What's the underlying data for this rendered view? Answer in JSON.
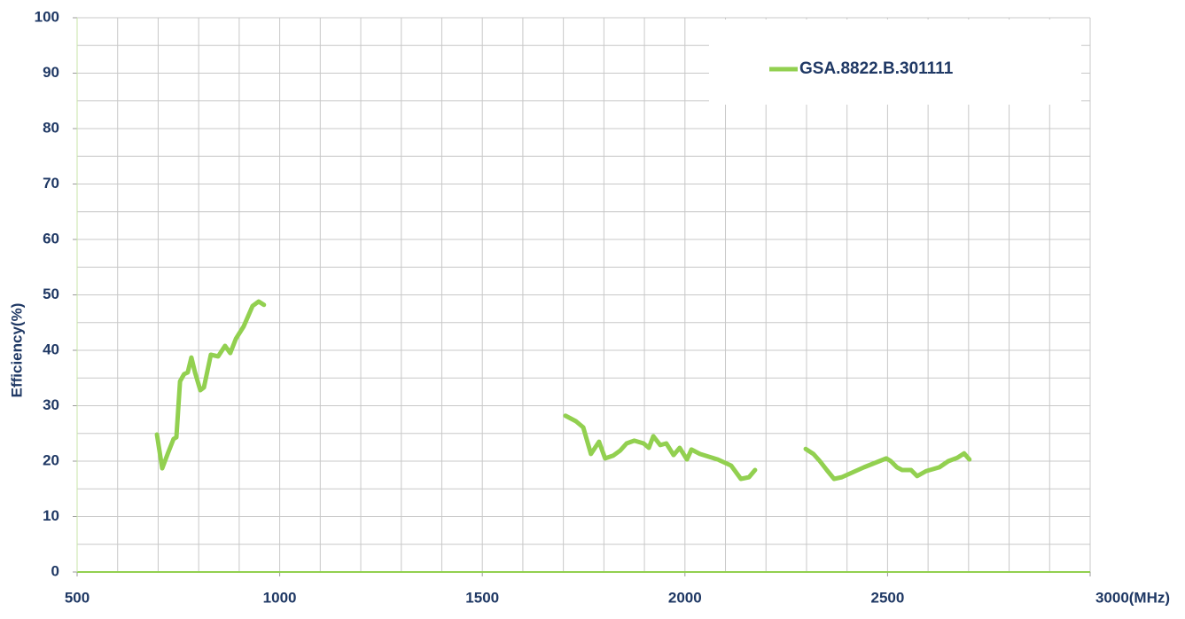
{
  "chart_data": {
    "type": "line",
    "y_label": "Efficiency(%)",
    "x": [
      697,
      710,
      725,
      738,
      745,
      754,
      764,
      773,
      782,
      791,
      804,
      813,
      830,
      848,
      865,
      878,
      892,
      911,
      933,
      948,
      961,
      null,
      1705,
      1731,
      1749,
      1768,
      1788,
      1803,
      1823,
      1840,
      1856,
      1875,
      1898,
      1911,
      1922,
      1939,
      1954,
      1972,
      1987,
      2005,
      2016,
      2037,
      2081,
      2114,
      2138,
      2158,
      2173,
      null,
      2298,
      2317,
      2333,
      2350,
      2368,
      2387,
      2442,
      2497,
      2508,
      2523,
      2536,
      2558,
      2573,
      2595,
      2628,
      2650,
      2672,
      2689,
      2702
    ],
    "series": [
      {
        "name": "GSA.8822.B.301111",
        "color": "#92d050",
        "values": [
          24.8,
          18.7,
          21.6,
          24,
          24.3,
          34.4,
          35.7,
          36,
          38.7,
          36,
          32.8,
          33.3,
          39.2,
          38.9,
          40.8,
          39.5,
          42.1,
          44.3,
          48,
          48.8,
          48.2,
          null,
          28.2,
          27.2,
          26.1,
          21.3,
          23.5,
          20.5,
          21,
          21.9,
          23.2,
          23.7,
          23.2,
          22.4,
          24.5,
          22.9,
          23.2,
          21.1,
          22.4,
          20.3,
          22.1,
          21.3,
          20.3,
          19.2,
          16.8,
          17.1,
          18.4,
          null,
          22.2,
          21.3,
          20,
          18.4,
          16.8,
          17.1,
          18.9,
          20.5,
          20,
          18.9,
          18.4,
          18.4,
          17.3,
          18.2,
          18.9,
          20,
          20.6,
          21.4,
          20.3
        ]
      }
    ],
    "xlim": [
      500,
      3000
    ],
    "ylim": [
      0,
      100
    ],
    "xticks": [
      500,
      1000,
      1500,
      2000,
      2500,
      {
        "value": 3000,
        "label": "3000(MHz)"
      }
    ],
    "yticks": [
      0,
      10,
      20,
      30,
      40,
      50,
      60,
      70,
      80,
      90,
      100
    ],
    "grid": true,
    "minor_grid": {
      "x": 100,
      "y": 5
    },
    "legend": "upper right"
  }
}
